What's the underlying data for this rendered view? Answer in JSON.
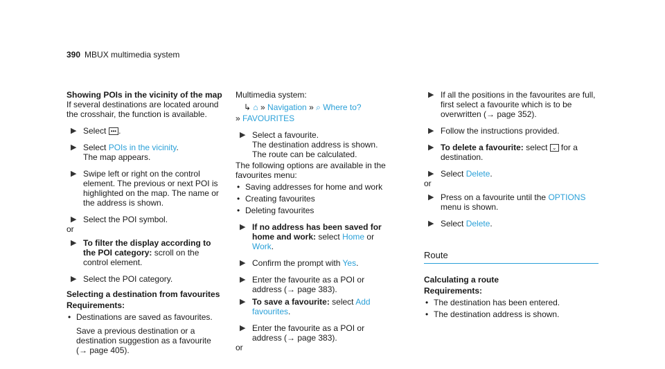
{
  "header": {
    "page_number": "390",
    "title": "MBUX multimedia system"
  },
  "col1": {
    "heading": "Showing POIs in the vicinity of the map",
    "intro": "If several destinations are located around the crosshair, the function is available.",
    "step1_prefix": "Select",
    "step1_icon": "more-icon",
    "step2_prefix": "Select",
    "step2_link": "POIs in the vicinity",
    "step2_after": "The map appears.",
    "step3": "Swipe left or right on the control element. The previous or next POI is highlighted on the map. The name or the address is shown.",
    "step4": "Select the POI symbol.",
    "or1": "or",
    "step5_bold": "To filter the display according to the POI category:",
    "step5_rest": "scroll on the control element.",
    "step6": "Select the POI category.",
    "heading2": "Selecting a destination from favourites",
    "req_label": "Requirements:",
    "req1": "Destinations are saved as favourites.",
    "req1_note": "Save a previous destination or a destination suggestion as a favourite (→ page 405)."
  },
  "col2": {
    "system_label": "Multimedia system:",
    "nav_label": "Navigation",
    "where_label": "Where to?",
    "fav_label": "FAVOURITES",
    "step1": "Select a favourite.",
    "step1_note": "The destination address is shown. The route can be calculated.",
    "options_intro": "The following options are available in the favourites menu:",
    "opt1": "Saving addresses for home and work",
    "opt2": "Creating favourites",
    "opt3": "Deleting favourites",
    "step2_bold": "If no address has been saved for home and work:",
    "step2_select": "select",
    "step2_home": "Home",
    "step2_or": "or",
    "step2_work": "Work",
    "step3_prefix": "Confirm the prompt with",
    "step3_yes": "Yes",
    "step4": "Enter the favourite as a POI or address (→ page 383).",
    "step5_bold": "To save a favourite:",
    "step5_select": "select",
    "step5_link": "Add favourites",
    "step6": "Enter the favourite as a POI or address (→ page 383).",
    "or1": "or"
  },
  "col3": {
    "step1": "If all the positions in the favourites are full, first select a favourite which is to be overwritten (→ page 352).",
    "step2": "Follow the instructions provided.",
    "step3_bold": "To delete a favourite:",
    "step3_select": "select",
    "step3_after": "for a destination.",
    "step4_prefix": "Select",
    "step4_link": "Delete",
    "or1": "or",
    "step5_prefix": "Press on a favourite until the",
    "step5_link": "OPTIONS",
    "step5_after": "menu is shown.",
    "step6_prefix": "Select",
    "step6_link": "Delete",
    "section_title": "Route",
    "heading": "Calculating a route",
    "req_label": "Requirements:",
    "req1": "The destination has been entered.",
    "req2": "The destination address is shown."
  },
  "colors": {
    "accent": "#2aa0d8",
    "text": "#1a1a1a"
  }
}
